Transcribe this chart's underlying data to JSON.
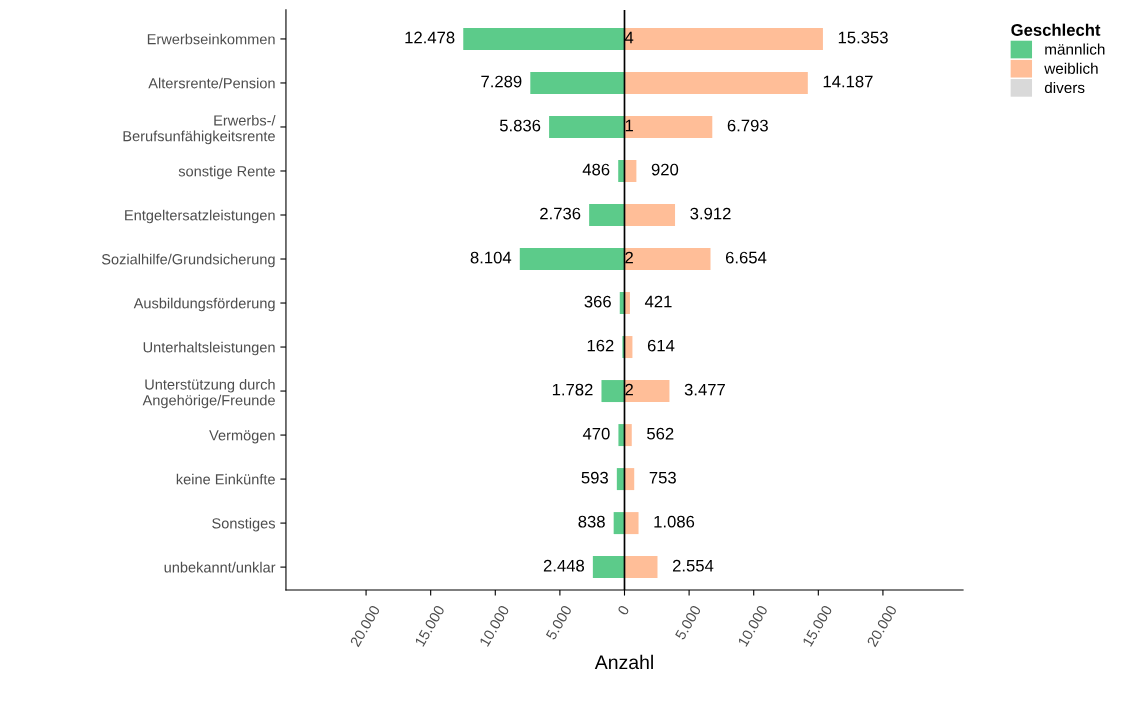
{
  "chart_data": {
    "type": "bar",
    "orientation": "horizontal",
    "xlabel": "Anzahl",
    "legend_title": "Geschlecht",
    "legend": "top right",
    "grid": false,
    "categories": [
      "Erwerbseinkommen",
      "Altersrente/Pension",
      "Erwerbs-/\nBerufsunfähigkeitsrente",
      "sonstige Rente",
      "Entgeltersatzleistungen",
      "Sozialhilfe/Grundsicherung",
      "Ausbildungsförderung",
      "Unterhaltsleistungen",
      "Unterstützung durch\nAngehörige/Freunde",
      "Vermögen",
      "keine Einkünfte",
      "Sonstiges",
      "unbekannt/unklar"
    ],
    "series": [
      {
        "name": "männlich",
        "color": "#5ccb8a",
        "values": [
          12478,
          7289,
          5836,
          486,
          2736,
          8104,
          366,
          162,
          1782,
          470,
          593,
          838,
          2448
        ],
        "base": [
          -12478,
          -7289,
          -5836,
          -486,
          -2736,
          -8104,
          -366,
          -162,
          -1782,
          -470,
          -593,
          -838,
          -2448
        ],
        "value_labels": [
          "12.478",
          "7.289",
          "5.836",
          "486",
          "2.736",
          "8.104",
          "366",
          "162",
          "1.782",
          "470",
          "593",
          "838",
          "2.448"
        ]
      },
      {
        "name": "divers",
        "color": "#d9d9d9",
        "values": [
          4,
          null,
          1,
          null,
          null,
          2,
          null,
          null,
          2,
          null,
          null,
          null,
          null
        ],
        "base": [
          0,
          null,
          0,
          null,
          null,
          0,
          null,
          null,
          0,
          null,
          null,
          null,
          null
        ],
        "value_labels": [
          "4",
          null,
          "1",
          null,
          null,
          "2",
          null,
          null,
          "2",
          null,
          null,
          null,
          null
        ]
      },
      {
        "name": "weiblich",
        "color": "#ffbe98",
        "values": [
          15353,
          14187,
          6793,
          920,
          3912,
          6654,
          421,
          614,
          3477,
          562,
          753,
          1086,
          2554
        ],
        "base": [
          4,
          0,
          1,
          0,
          0,
          2,
          0,
          0,
          2,
          0,
          0,
          0,
          0
        ],
        "value_labels": [
          "15.353",
          "14.187",
          "6.793",
          "920",
          "3.912",
          "6.654",
          "421",
          "614",
          "3.477",
          "562",
          "753",
          "1.086",
          "2.554"
        ]
      }
    ],
    "xlim": [
      -26200,
      26200
    ],
    "xticks": [
      {
        "value": -20000,
        "label": "20.000"
      },
      {
        "value": -15000,
        "label": "15.000"
      },
      {
        "value": -10000,
        "label": "10.000"
      },
      {
        "value": -5000,
        "label": "5.000"
      },
      0,
      {
        "value": 5000,
        "label": "5.000"
      },
      {
        "value": 10000,
        "label": "10.000"
      },
      {
        "value": 15000,
        "label": "15.000"
      },
      {
        "value": 20000,
        "label": "20.000"
      }
    ],
    "ref_lines": [
      {
        "axis": "x",
        "value": 0,
        "color": "#000000"
      }
    ]
  }
}
